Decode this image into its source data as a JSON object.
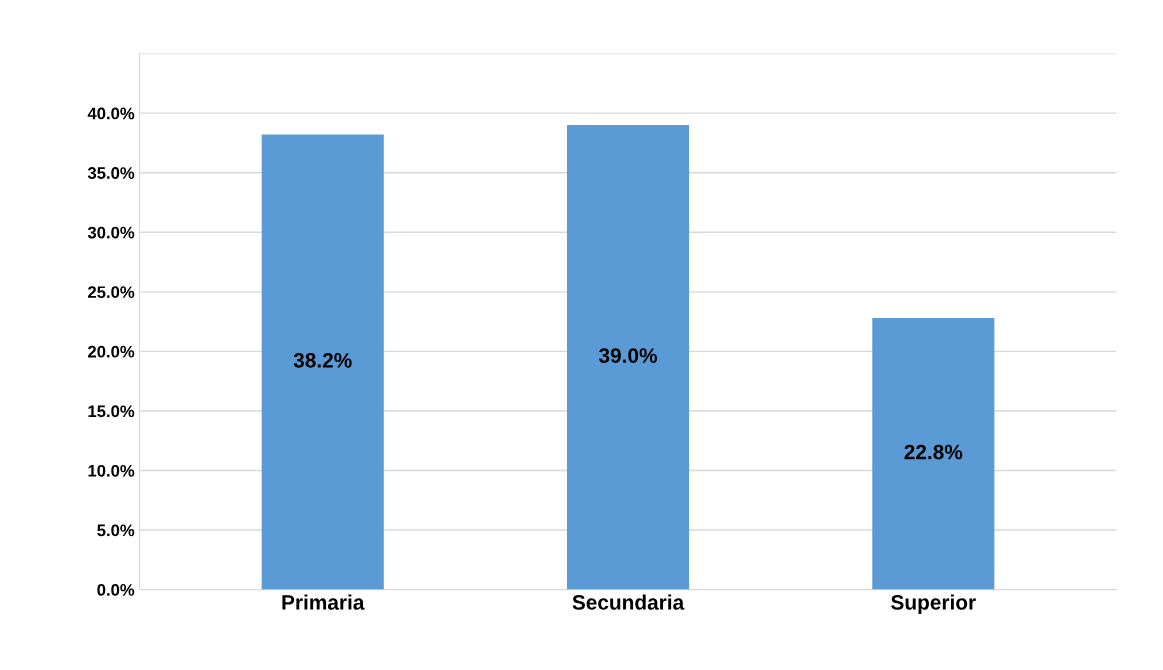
{
  "chart_data": {
    "type": "bar",
    "categories": [
      "Primaria",
      "Secundaria",
      "Superior"
    ],
    "values": [
      38.2,
      39.0,
      22.8
    ],
    "value_labels": [
      "38.2%",
      "39.0%",
      "22.8%"
    ],
    "color": "#5b9bd5",
    "ylim": [
      0,
      45
    ],
    "yticks": [
      {
        "value": 0,
        "label": "0.0%"
      },
      {
        "value": 5,
        "label": "5.0%"
      },
      {
        "value": 10,
        "label": "10.0%"
      },
      {
        "value": 15,
        "label": "15.0%"
      },
      {
        "value": 20,
        "label": "20.0%"
      },
      {
        "value": 25,
        "label": "25.0%"
      },
      {
        "value": 30,
        "label": "30.0%"
      },
      {
        "value": 35,
        "label": "35.0%"
      },
      {
        "value": 40,
        "label": "40.0%"
      },
      {
        "value": 45,
        "label": null
      }
    ],
    "grid": "y"
  }
}
